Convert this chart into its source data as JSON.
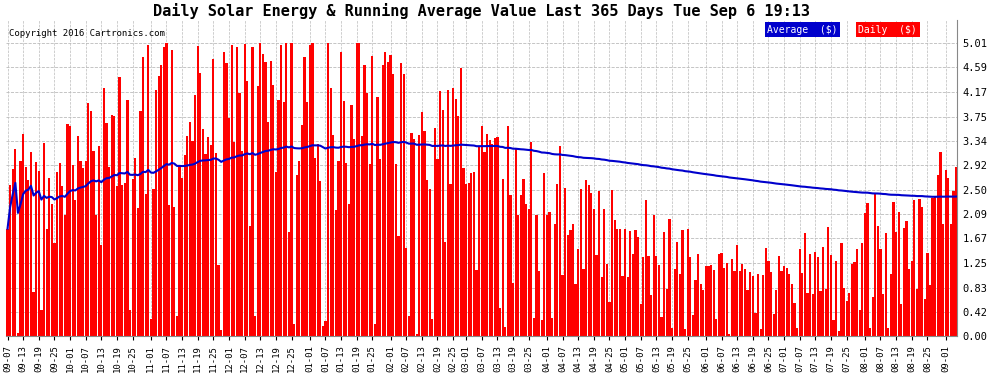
{
  "title": "Daily Solar Energy & Running Average Value Last 365 Days Tue Sep 6 19:13",
  "copyright": "Copyright 2016 Cartronics.com",
  "legend_avg": "Average  ($)",
  "legend_daily": "Daily  ($)",
  "yticks": [
    0.0,
    0.42,
    0.83,
    1.25,
    1.67,
    2.09,
    2.5,
    2.92,
    3.34,
    3.75,
    4.17,
    4.59,
    5.01
  ],
  "ylim": [
    0.0,
    5.4
  ],
  "bar_color": "#ff0000",
  "avg_color": "#0000cc",
  "bg_color": "#ffffff",
  "grid_color": "#bbbbbb",
  "title_fontsize": 11,
  "bar_width": 0.85,
  "avg_linewidth": 1.5,
  "figsize": [
    9.9,
    3.75
  ],
  "dpi": 100
}
